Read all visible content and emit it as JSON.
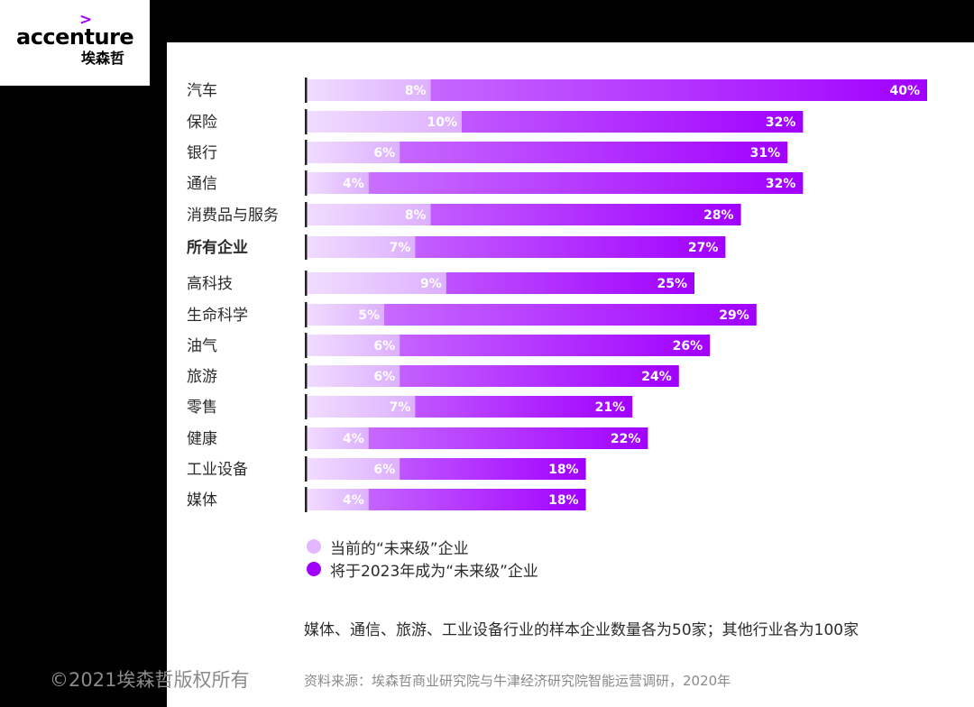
{
  "logo": {
    "chevron": ">",
    "name": "accenture",
    "name_cn": "埃森哲"
  },
  "chart_data": {
    "type": "bar",
    "orientation": "horizontal",
    "categories": [
      "汽车",
      "保险",
      "银行",
      "通信",
      "消费品与服务",
      "所有企业",
      "高科技",
      "生命科学",
      "油气",
      "旅游",
      "零售",
      "健康",
      "工业设备",
      "媒体"
    ],
    "bold_categories": [
      "所有企业"
    ],
    "series": [
      {
        "name": "当前的“未来级”企业",
        "color": "#e2b7ff",
        "values": [
          8,
          10,
          6,
          4,
          8,
          7,
          9,
          5,
          6,
          6,
          7,
          4,
          6,
          4
        ]
      },
      {
        "name": "将于2023年成为“未来级”企业",
        "color": "#a100ff",
        "values": [
          40,
          32,
          31,
          32,
          28,
          27,
          25,
          29,
          26,
          24,
          21,
          22,
          18,
          18
        ]
      }
    ],
    "value_labels": {
      "current": [
        "8%",
        "10%",
        "6%",
        "4%",
        "8%",
        "7%",
        "9%",
        "5%",
        "6%",
        "6%",
        "7%",
        "4%",
        "6%",
        "4%"
      ],
      "future": [
        "40%",
        "32%",
        "31%",
        "32%",
        "28%",
        "27%",
        "25%",
        "29%",
        "26%",
        "24%",
        "21%",
        "22%",
        "18%",
        "18%"
      ]
    },
    "legend_position": "bottom-left"
  },
  "legend": [
    {
      "label": "当前的“未来级”企业",
      "color": "#e2b7ff"
    },
    {
      "label": "将于2023年成为“未来级”企业",
      "color": "#a100ff"
    }
  ],
  "footnote": "媒体、通信、旅游、工业设备行业的样本企业数量各为50家；其他行业各为100家",
  "source": "资料来源：埃森哲商业研究院与牛津经济研究院智能运营调研，2020年",
  "copyright": "©2021埃森哲版权所有"
}
